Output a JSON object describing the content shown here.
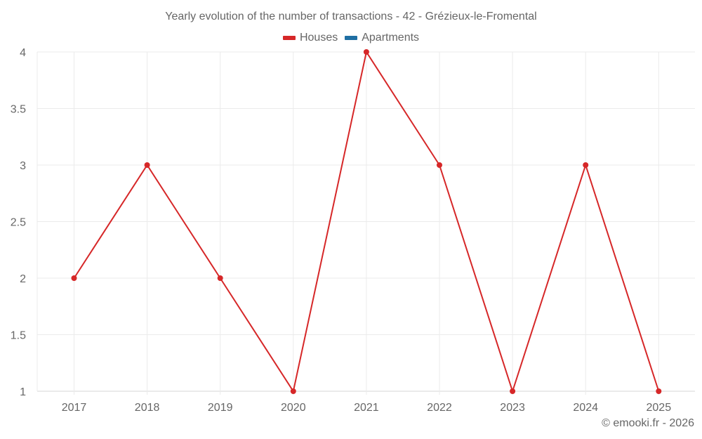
{
  "chart": {
    "title": "Yearly evolution of the number of transactions - 42 - Grézieux-le-Fromental",
    "legend": [
      {
        "label": "Houses",
        "color": "#d62728"
      },
      {
        "label": "Apartments",
        "color": "#1f6fa3"
      }
    ],
    "footer": "© emooki.fr - 2026"
  },
  "chart_data": {
    "type": "line",
    "title": "Yearly evolution of the number of transactions - 42 - Grézieux-le-Fromental",
    "xlabel": "",
    "ylabel": "",
    "categories": [
      "2017",
      "2018",
      "2019",
      "2020",
      "2021",
      "2022",
      "2023",
      "2024",
      "2025"
    ],
    "series": [
      {
        "name": "Houses",
        "color": "#d62728",
        "values": [
          2,
          3,
          2,
          1,
          4,
          3,
          1,
          3,
          1
        ]
      },
      {
        "name": "Apartments",
        "color": "#1f6fa3",
        "values": []
      }
    ],
    "ylim": [
      1,
      4
    ],
    "yticks": [
      "1",
      "1.5",
      "2",
      "2.5",
      "3",
      "3.5",
      "4"
    ],
    "grid": true,
    "legend_position": "top"
  }
}
